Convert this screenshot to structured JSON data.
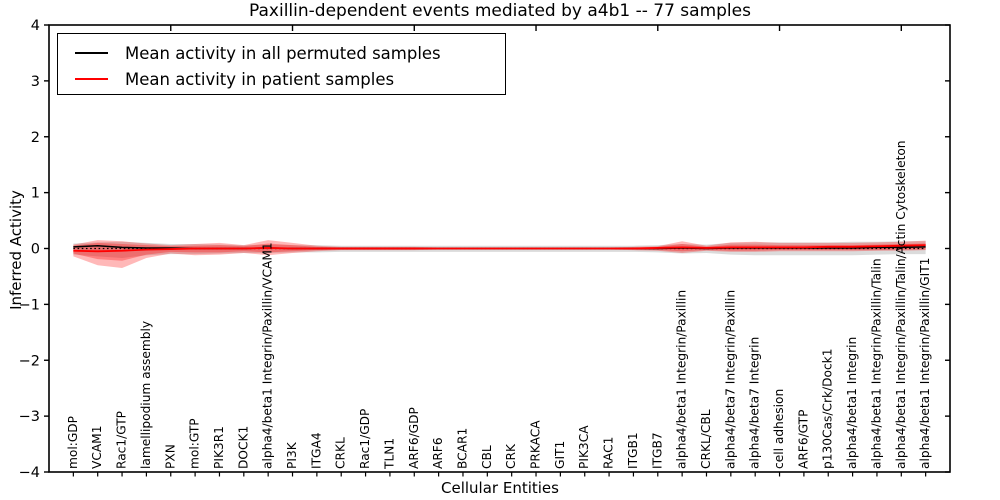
{
  "figure": {
    "title": "Paxillin-dependent events mediated by a4b1 -- 77 samples"
  },
  "axes": {
    "xlabel": "Cellular Entities",
    "ylabel": "Inferred Activity"
  },
  "legend": {
    "items": [
      {
        "label": "Mean activity in all permuted samples",
        "color": "#000000"
      },
      {
        "label": "Mean activity in patient samples",
        "color": "#ff0000"
      }
    ]
  },
  "chart_data": {
    "type": "line",
    "title": "Paxillin-dependent events mediated by a4b1 -- 77 samples",
    "xlabel": "Cellular Entities",
    "ylabel": "Inferred Activity",
    "ylim": [
      -4,
      4
    ],
    "grid": false,
    "legend_position": "upper left",
    "yticks": [
      {
        "label": "4",
        "value": 4
      },
      {
        "label": "3",
        "value": 3
      },
      {
        "label": "2",
        "value": 2
      },
      {
        "label": "1",
        "value": 1
      },
      {
        "label": "0",
        "value": 0
      },
      {
        "label": "−1",
        "value": -1
      },
      {
        "label": "−2",
        "value": -2
      },
      {
        "label": "−3",
        "value": -3
      },
      {
        "label": "−4",
        "value": -4
      }
    ],
    "x_major_tick_every": 5,
    "categories": [
      "mol:GDP",
      "VCAM1",
      "Rac1/GTP",
      "lamellipodium assembly",
      "PXN",
      "mol:GTP",
      "PIK3R1",
      "DOCK1",
      "alpha4/beta1 Integrin/Paxillin/VCAM1",
      "PI3K",
      "ITGA4",
      "CRKL",
      "Rac1/GDP",
      "TLN1",
      "ARF6/GDP",
      "ARF6",
      "BCAR1",
      "CBL",
      "CRK",
      "PRKACA",
      "GIT1",
      "PIK3CA",
      "RAC1",
      "ITGB1",
      "ITGB7",
      "alpha4/beta1 Integrin/Paxillin",
      "CRKL/CBL",
      "alpha4/beta7 Integrin/Paxillin",
      "alpha4/beta7 Integrin",
      "cell adhesion",
      "ARF6/GTP",
      "p130Cas/Crk/Dock1",
      "alpha4/beta1 Integrin",
      "alpha4/beta1 Integrin/Paxillin/Talin",
      "alpha4/beta1 Integrin/Paxillin/Talin/Actin Cytoskeleton",
      "alpha4/beta1 Integrin/Paxillin/GIT1"
    ],
    "series": [
      {
        "name": "Mean activity in all permuted samples",
        "color": "#000000",
        "values": [
          0.03,
          0.05,
          0.02,
          0.01,
          0.01,
          0,
          0,
          0,
          0.01,
          0,
          0,
          0,
          0,
          0,
          0,
          0,
          0,
          0,
          0,
          0,
          0,
          0,
          0,
          0,
          0,
          0.01,
          0,
          0.01,
          0.01,
          0.01,
          0.01,
          0.01,
          0.01,
          0.02,
          0.02,
          0.03
        ]
      },
      {
        "name": "Mean activity in patient samples",
        "color": "#ff0000",
        "values": [
          -0.04,
          -0.05,
          -0.04,
          -0.02,
          -0.01,
          0,
          0,
          0,
          0.01,
          0,
          0,
          0,
          0,
          0,
          0,
          0,
          0,
          0,
          0,
          0,
          0,
          0,
          0,
          0,
          0.01,
          0.02,
          0.01,
          0.02,
          0.02,
          0.02,
          0.02,
          0.03,
          0.03,
          0.04,
          0.05,
          0.06
        ]
      }
    ],
    "bands": [
      {
        "name": "permuted-samples-range",
        "color": "#999999",
        "opacity": 0.35,
        "upper": [
          0.09,
          0.11,
          0.12,
          0.1,
          0.08,
          0.08,
          0.07,
          0.06,
          0.07,
          0.06,
          0.06,
          0.05,
          0.05,
          0.05,
          0.05,
          0.05,
          0.05,
          0.05,
          0.05,
          0.05,
          0.05,
          0.05,
          0.05,
          0.05,
          0.06,
          0.08,
          0.07,
          0.1,
          0.11,
          0.11,
          0.11,
          0.11,
          0.12,
          0.12,
          0.13,
          0.13
        ],
        "lower": [
          -0.11,
          -0.14,
          -0.17,
          -0.12,
          -0.1,
          -0.1,
          -0.09,
          -0.08,
          -0.08,
          -0.07,
          -0.07,
          -0.06,
          -0.06,
          -0.06,
          -0.06,
          -0.06,
          -0.06,
          -0.06,
          -0.06,
          -0.06,
          -0.06,
          -0.06,
          -0.06,
          -0.06,
          -0.07,
          -0.09,
          -0.08,
          -0.11,
          -0.12,
          -0.12,
          -0.12,
          -0.12,
          -0.12,
          -0.11,
          -0.1,
          -0.1
        ]
      },
      {
        "name": "patient-samples-range-outer",
        "color": "#ff0000",
        "opacity": 0.28,
        "upper": [
          0.07,
          0.15,
          0.13,
          0.09,
          0.06,
          0.08,
          0.1,
          0.06,
          0.15,
          0.1,
          0.05,
          0.03,
          0.03,
          0.03,
          0.03,
          0.02,
          0.02,
          0.02,
          0.02,
          0.02,
          0.02,
          0.02,
          0.02,
          0.03,
          0.04,
          0.13,
          0.05,
          0.11,
          0.12,
          0.1,
          0.1,
          0.1,
          0.1,
          0.11,
          0.12,
          0.14
        ],
        "lower": [
          -0.14,
          -0.3,
          -0.35,
          -0.17,
          -0.09,
          -0.12,
          -0.11,
          -0.08,
          -0.12,
          -0.08,
          -0.05,
          -0.03,
          -0.03,
          -0.03,
          -0.03,
          -0.02,
          -0.02,
          -0.02,
          -0.02,
          -0.02,
          -0.02,
          -0.02,
          -0.02,
          -0.03,
          -0.04,
          -0.08,
          -0.04,
          -0.06,
          -0.06,
          -0.05,
          -0.05,
          -0.05,
          -0.05,
          -0.04,
          -0.04,
          -0.03
        ]
      },
      {
        "name": "patient-samples-range-inner",
        "color": "#ff0000",
        "opacity": 0.3,
        "upper": [
          0.05,
          0.1,
          0.08,
          0.06,
          0.04,
          0.05,
          0.06,
          0.04,
          0.09,
          0.06,
          0.03,
          0.02,
          0.02,
          0.02,
          0.02,
          0.01,
          0.01,
          0.01,
          0.01,
          0.01,
          0.01,
          0.01,
          0.01,
          0.02,
          0.03,
          0.08,
          0.03,
          0.07,
          0.07,
          0.06,
          0.06,
          0.06,
          0.06,
          0.07,
          0.08,
          0.09
        ],
        "lower": [
          -0.09,
          -0.19,
          -0.22,
          -0.11,
          -0.06,
          -0.07,
          -0.07,
          -0.05,
          -0.07,
          -0.05,
          -0.03,
          -0.02,
          -0.02,
          -0.02,
          -0.02,
          -0.01,
          -0.01,
          -0.01,
          -0.01,
          -0.01,
          -0.01,
          -0.01,
          -0.01,
          -0.02,
          -0.03,
          -0.05,
          -0.03,
          -0.04,
          -0.04,
          -0.03,
          -0.03,
          -0.03,
          -0.03,
          -0.03,
          -0.02,
          -0.02
        ]
      }
    ],
    "zero_line": {
      "style": "dotted",
      "color": "#000000"
    }
  }
}
